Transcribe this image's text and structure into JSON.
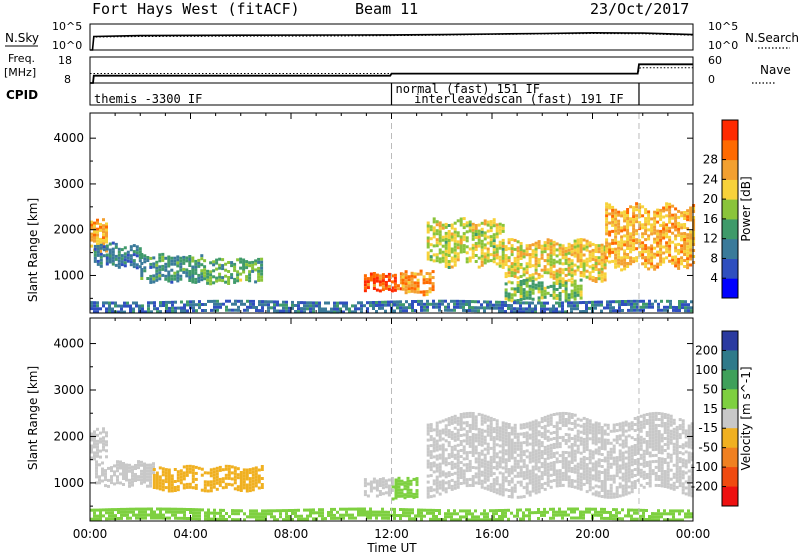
{
  "header": {
    "station": "Fort Hays West (fitACF)",
    "beam": "Beam 11",
    "date": "23/Oct/2017"
  },
  "noise_panel": {
    "left_label": "N.Sky",
    "right_label": "N.Search",
    "left_ticks": [
      "10^5",
      "10^0"
    ],
    "right_ticks": [
      "10^5",
      "10^0"
    ]
  },
  "freq_panel": {
    "left_label_1": "Freq.",
    "left_label_2": "[MHz]",
    "right_label": "Nave",
    "left_ticks": [
      "18",
      "8"
    ],
    "right_ticks": [
      "60",
      "0"
    ]
  },
  "cpid_panel": {
    "label": "CPID",
    "modes": [
      {
        "text": "themis -3300 IF",
        "start_hour": 0.0
      },
      {
        "text": "normal (fast) 151 IF",
        "start_hour": 12.0
      },
      {
        "text": "interleavedscan (fast) 191 IF",
        "start_hour": 14.0
      }
    ],
    "boundaries_hour": [
      12.0,
      21.85
    ]
  },
  "axes": {
    "ylabel": "Slant Range [km]",
    "yticks": [
      "1000",
      "2000",
      "3000",
      "4000"
    ],
    "xticks": [
      "00:00",
      "04:00",
      "08:00",
      "12:00",
      "16:00",
      "20:00",
      "00:00"
    ],
    "xlabel": "Time UT"
  },
  "power_scale": {
    "title": "Power [dB]",
    "labels": [
      "4",
      "8",
      "12",
      "16",
      "20",
      "24",
      "28"
    ],
    "colors": [
      "#0000ff",
      "#2f4fbf",
      "#3a7a9a",
      "#3f9a6a",
      "#8ac43a",
      "#f7d23a",
      "#f3a030",
      "#ff6a00",
      "#ff2a00"
    ]
  },
  "velocity_scale": {
    "title": "Velocity [m s^-1]",
    "labels": [
      "200",
      "100",
      "50",
      "15",
      "-15",
      "-50",
      "-100",
      "-200"
    ],
    "colors": [
      "#2a3aa0",
      "#2f7a8a",
      "#3fa05a",
      "#7ed040",
      "#c8c8c8",
      "#f0b020",
      "#f08020",
      "#f04a10",
      "#ee1010"
    ]
  },
  "chart_data": [
    {
      "type": "line",
      "title": "Fort Hays West (fitACF)  Beam 11  23/Oct/2017",
      "series": [
        {
          "name": "N.Sky",
          "x": [
            0,
            0.1,
            0.15,
            2,
            6,
            10,
            12,
            14,
            16,
            18,
            20,
            22,
            24
          ],
          "values": [
            1,
            1,
            400,
            600,
            700,
            750,
            800,
            900,
            1200,
            1500,
            2000,
            1800,
            900
          ]
        },
        {
          "name": "N.Search",
          "x": [
            0,
            0.1,
            0.15,
            2,
            6,
            10,
            12,
            14,
            16,
            18,
            20,
            22,
            24
          ],
          "values": [
            1,
            1,
            300,
            400,
            450,
            500,
            600,
            700,
            1000,
            1200,
            1500,
            1300,
            700
          ]
        }
      ]
    },
    {
      "type": "line",
      "series": [
        {
          "name": "Freq.",
          "x": [
            0,
            0.12,
            0.15,
            11.95,
            12.0,
            21.8,
            21.85,
            24
          ],
          "values": [
            8,
            8,
            10.8,
            10.8,
            11.6,
            11.6,
            15.2,
            15.2
          ]
        },
        {
          "name": "Nave",
          "x": [
            0,
            1,
            4,
            8,
            12,
            16,
            20,
            21.8,
            21.9,
            24
          ],
          "values": [
            22,
            22,
            22,
            22,
            22,
            22,
            22,
            22,
            35,
            35
          ]
        }
      ]
    },
    {
      "type": "heatmap",
      "title": "Power [dB]",
      "xlabel": "Time UT",
      "ylabel": "Slant Range [km]",
      "xlim": [
        0,
        24
      ],
      "ylim": [
        180,
        4550
      ],
      "clim": [
        0,
        32
      ],
      "regions": [
        {
          "t0": 0.0,
          "t1": 0.6,
          "r0": 1550,
          "r1": 2200,
          "value": 22
        },
        {
          "t0": 0.15,
          "t1": 2.0,
          "r0": 1200,
          "r1": 1700,
          "value": 9
        },
        {
          "t0": 2.0,
          "t1": 4.5,
          "r0": 900,
          "r1": 1450,
          "value": 11
        },
        {
          "t0": 4.5,
          "t1": 6.8,
          "r0": 850,
          "r1": 1350,
          "value": 14
        },
        {
          "t0": 10.9,
          "t1": 12.4,
          "r0": 700,
          "r1": 1050,
          "value": 28
        },
        {
          "t0": 12.4,
          "t1": 13.7,
          "r0": 600,
          "r1": 1100,
          "value": 24
        },
        {
          "t0": 13.4,
          "t1": 16.5,
          "r0": 1250,
          "r1": 2200,
          "value": 18
        },
        {
          "t0": 16.5,
          "t1": 20.5,
          "r0": 900,
          "r1": 1750,
          "value": 20
        },
        {
          "t0": 20.5,
          "t1": 24.0,
          "r0": 1250,
          "r1": 2500,
          "value": 22
        },
        {
          "t0": 16.5,
          "t1": 19.5,
          "r0": 500,
          "r1": 900,
          "value": 15
        },
        {
          "t0": 0.0,
          "t1": 24.0,
          "r0": 200,
          "r1": 450,
          "value": 8
        }
      ]
    },
    {
      "type": "heatmap",
      "title": "Velocity [m s^-1]",
      "xlabel": "Time UT",
      "ylabel": "Slant Range [km]",
      "xlim": [
        0,
        24
      ],
      "ylim": [
        180,
        4550
      ],
      "clim": [
        -225,
        225
      ],
      "regions": [
        {
          "t0": 0.0,
          "t1": 0.6,
          "r0": 1550,
          "r1": 2150,
          "value": 0
        },
        {
          "t0": 0.2,
          "t1": 2.5,
          "r0": 950,
          "r1": 1450,
          "value": 0
        },
        {
          "t0": 2.5,
          "t1": 6.8,
          "r0": 850,
          "r1": 1350,
          "value": -40
        },
        {
          "t0": 10.9,
          "t1": 12.0,
          "r0": 750,
          "r1": 1100,
          "value": 0
        },
        {
          "t0": 12.0,
          "t1": 13.0,
          "r0": 650,
          "r1": 1100,
          "value": 30
        },
        {
          "t0": 13.4,
          "t1": 24.0,
          "r0": 800,
          "r1": 2400,
          "value": 0
        },
        {
          "t0": 0.0,
          "t1": 24.0,
          "r0": 200,
          "r1": 450,
          "value": 20
        }
      ]
    }
  ]
}
